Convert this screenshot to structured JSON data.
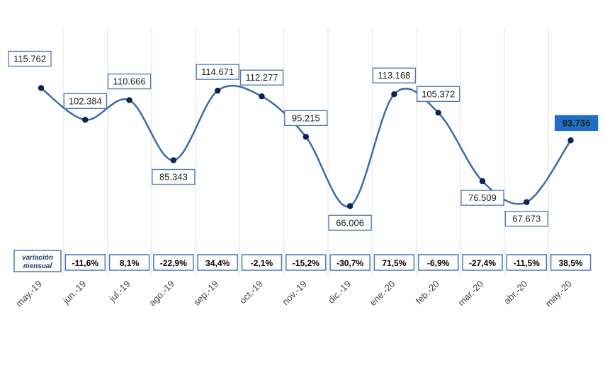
{
  "chart_data": {
    "type": "line",
    "categories": [
      "may.-19",
      "jun.-19",
      "jul.-19",
      "ago.-19",
      "sep.-19",
      "oct.-19",
      "nov.-19",
      "dic.-19",
      "ene.-20",
      "feb.-20",
      "mar.-20",
      "abr.-20",
      "may.-20"
    ],
    "values": [
      115762,
      102384,
      110666,
      85343,
      114671,
      112277,
      95215,
      66006,
      113168,
      105372,
      76509,
      67673,
      93736
    ],
    "value_labels": [
      "115.762",
      "102.384",
      "110.666",
      "85.343",
      "114.671",
      "112.277",
      "95.215",
      "66.006",
      "113.168",
      "105.372",
      "76.509",
      "67.673",
      "93.736"
    ],
    "variation_label_line1": "variación",
    "variation_label_line2": "mensual",
    "variation_values": [
      "",
      "-11,6%",
      "8,1%",
      "-22,9%",
      "34,4%",
      "-2,1%",
      "-15,2%",
      "-30,7%",
      "71,5%",
      "-6,9%",
      "-27,4%",
      "-11,5%",
      "38,5%"
    ],
    "grid": "vertical",
    "line_color": "#3a6bb0",
    "marker_color": "#0d2250",
    "highlight_color": "#1f6fc5",
    "label_border_color": "#4a78b5"
  }
}
